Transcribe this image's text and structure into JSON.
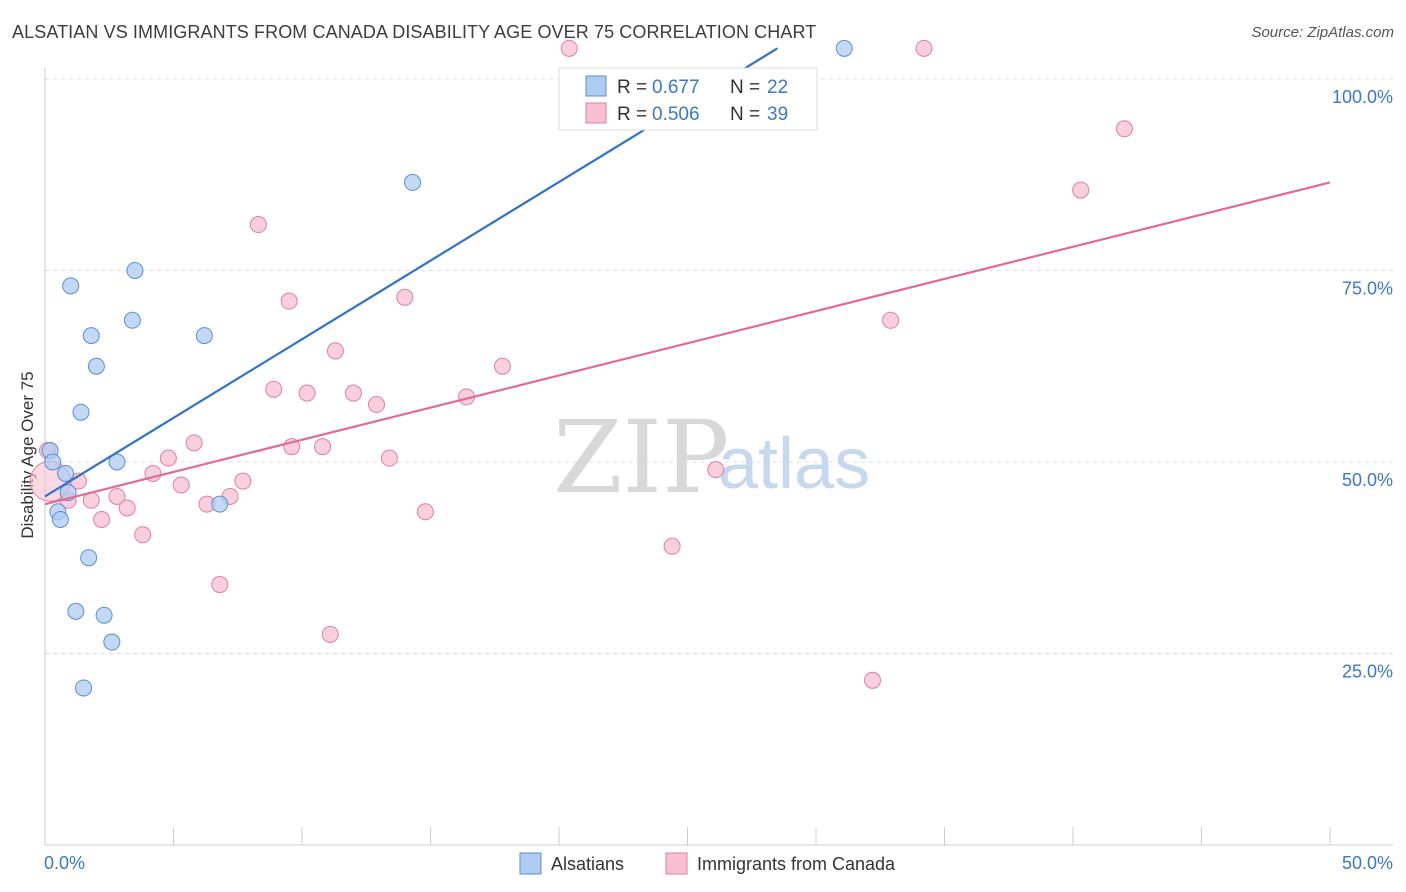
{
  "title": "ALSATIAN VS IMMIGRANTS FROM CANADA DISABILITY AGE OVER 75 CORRELATION CHART",
  "source": "Source: ZipAtlas.com",
  "watermark": {
    "zip": "ZIP",
    "atlas": "atlas"
  },
  "colors": {
    "blue_fill": "#aecbf0",
    "blue_stroke": "#5b8fd6",
    "blue_line": "#2f74c9",
    "pink_fill": "#f7bfd1",
    "pink_stroke": "#e07fa2",
    "pink_line": "#e06c96",
    "tick_text": "#3a78c9",
    "grid": "#dddddd"
  },
  "legend": {
    "rows": [
      {
        "r_label": "R =",
        "r_value": "0.677",
        "n_label": "N =",
        "n_value": "22"
      },
      {
        "r_label": "R =",
        "r_value": "0.506",
        "n_label": "N =",
        "n_value": "39"
      }
    ]
  },
  "chart_data": {
    "type": "scatter",
    "title": "ALSATIAN VS IMMIGRANTS FROM CANADA DISABILITY AGE OVER 75 CORRELATION CHART",
    "xlabel": "",
    "ylabel": "Disability Age Over 75",
    "xlim": [
      0,
      50
    ],
    "ylim": [
      0,
      100
    ],
    "x_tick_labels": [
      "0.0%",
      "50.0%"
    ],
    "y_ticks": [
      25,
      50,
      75,
      100
    ],
    "y_tick_labels": [
      "25.0%",
      "50.0%",
      "75.0%",
      "100.0%"
    ],
    "series": [
      {
        "name": "Alsatians",
        "r": 0.677,
        "n": 22,
        "points": [
          [
            0.2,
            51.5
          ],
          [
            0.3,
            50.0
          ],
          [
            0.8,
            48.5
          ],
          [
            0.9,
            46.0
          ],
          [
            0.5,
            43.5
          ],
          [
            0.6,
            42.5
          ],
          [
            1.0,
            73.0
          ],
          [
            1.8,
            66.5
          ],
          [
            2.0,
            62.5
          ],
          [
            1.4,
            56.5
          ],
          [
            2.8,
            50.0
          ],
          [
            3.5,
            75.0
          ],
          [
            3.4,
            68.5
          ],
          [
            6.2,
            66.5
          ],
          [
            6.8,
            44.5
          ],
          [
            1.7,
            37.5
          ],
          [
            1.2,
            30.5
          ],
          [
            2.3,
            30.0
          ],
          [
            2.6,
            26.5
          ],
          [
            1.5,
            20.5
          ],
          [
            14.3,
            86.5
          ],
          [
            31.1,
            104.0
          ]
        ],
        "trend": [
          [
            0.0,
            45.5
          ],
          [
            28.5,
            104.0
          ]
        ]
      },
      {
        "name": "Immigrants from Canada",
        "r": 0.506,
        "n": 39,
        "points": [
          [
            0.1,
            51.5
          ],
          [
            0.9,
            45.0
          ],
          [
            1.3,
            47.5
          ],
          [
            1.8,
            45.0
          ],
          [
            2.2,
            42.5
          ],
          [
            2.8,
            45.5
          ],
          [
            3.2,
            44.0
          ],
          [
            3.8,
            40.5
          ],
          [
            4.2,
            48.5
          ],
          [
            4.8,
            50.5
          ],
          [
            5.3,
            47.0
          ],
          [
            5.8,
            52.5
          ],
          [
            6.3,
            44.5
          ],
          [
            6.8,
            34.0
          ],
          [
            7.2,
            45.5
          ],
          [
            7.7,
            47.5
          ],
          [
            8.3,
            81.0
          ],
          [
            9.5,
            71.0
          ],
          [
            8.9,
            59.5
          ],
          [
            9.6,
            52.0
          ],
          [
            10.2,
            59.0
          ],
          [
            10.8,
            52.0
          ],
          [
            11.3,
            64.5
          ],
          [
            12.0,
            59.0
          ],
          [
            12.9,
            57.5
          ],
          [
            13.4,
            50.5
          ],
          [
            14.0,
            71.5
          ],
          [
            14.8,
            43.5
          ],
          [
            16.4,
            58.5
          ],
          [
            17.8,
            62.5
          ],
          [
            11.1,
            27.5
          ],
          [
            24.4,
            39.0
          ],
          [
            26.1,
            49.0
          ],
          [
            32.9,
            68.5
          ],
          [
            34.2,
            104.0
          ],
          [
            20.4,
            104.0
          ],
          [
            40.3,
            85.5
          ],
          [
            42.0,
            93.5
          ],
          [
            32.2,
            21.5
          ]
        ],
        "trend": [
          [
            0.0,
            44.5
          ],
          [
            50.0,
            86.5
          ]
        ]
      }
    ]
  },
  "bottom_legend": [
    "Alsatians",
    "Immigrants from Canada"
  ]
}
